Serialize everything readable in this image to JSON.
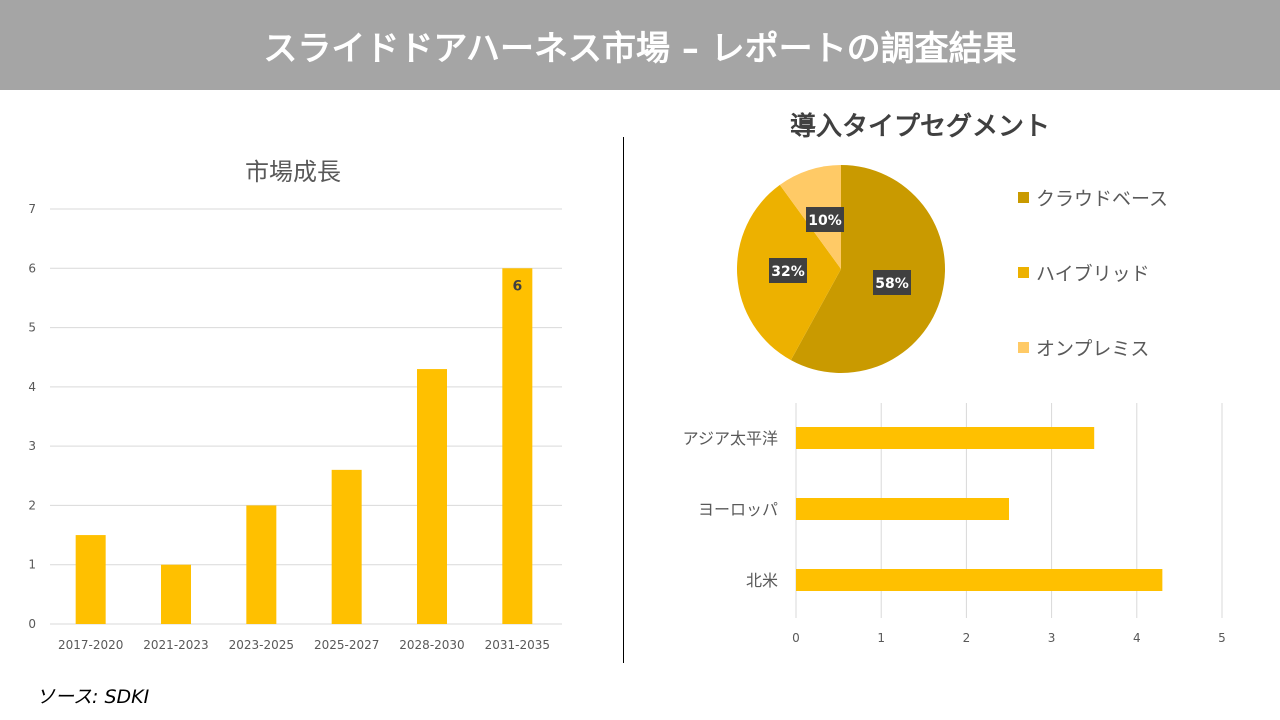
{
  "header": {
    "title": "スライドドアハーネス市場 – レポートの調査結果"
  },
  "source": "ソース: SDKI",
  "colors": {
    "bar": "#FFC000",
    "cloud": "#C99A00",
    "hybrid": "#EDB100",
    "onprem": "#FFCA66",
    "header": "#A5A5A5"
  },
  "chart_data": [
    {
      "type": "bar",
      "title": "市場成長",
      "categories": [
        "2017-2020",
        "2021-2023",
        "2023-2025",
        "2025-2027",
        "2028-2030",
        "2031-2035"
      ],
      "values": [
        1.5,
        1,
        2,
        2.6,
        4.3,
        6
      ],
      "ylim": [
        0,
        7
      ],
      "yticks": [
        "0",
        "1",
        "2",
        "3",
        "4",
        "5",
        "6",
        "7"
      ],
      "data_labels": {
        "5": "6"
      },
      "grid": true
    },
    {
      "type": "pie",
      "title": "導入タイプセグメント",
      "labels": [
        "クラウドベース",
        "ハイブリッド",
        "オンプレミス"
      ],
      "values": [
        58,
        32,
        10
      ],
      "data_labels": [
        "58%",
        "32%",
        "10%"
      ],
      "legend": "right"
    },
    {
      "type": "bar",
      "orientation": "horizontal",
      "categories": [
        "アジア太平洋",
        "ヨーロッパ",
        "北米"
      ],
      "values": [
        3.5,
        2.5,
        4.3
      ],
      "xlim": [
        0,
        5
      ],
      "xticks": [
        "0",
        "1",
        "2",
        "3",
        "4",
        "5"
      ],
      "grid": true
    }
  ]
}
